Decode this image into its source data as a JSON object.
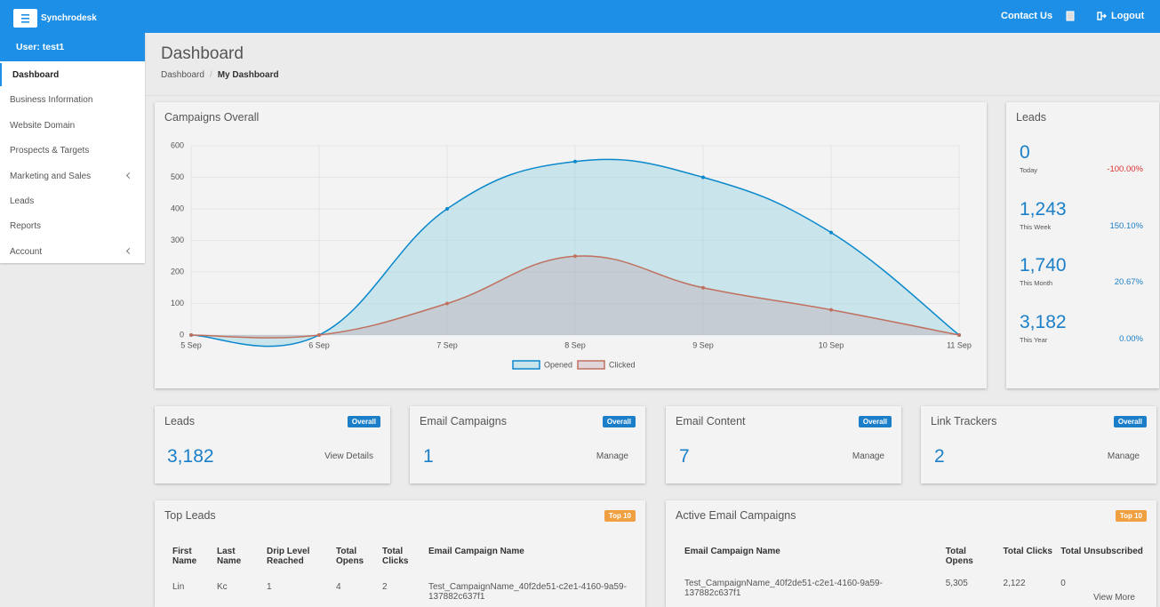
{
  "navbar": {
    "brand": "Synchrodesk",
    "contact": "Contact Us",
    "logout": "Logout"
  },
  "sidebar": {
    "user": "User: test1",
    "items": [
      "Dashboard",
      "Business Information",
      "Website Domain",
      "Prospects & Targets",
      "Marketing and Sales",
      "Leads",
      "Reports",
      "Account"
    ]
  },
  "header": {
    "title": "Dashboard",
    "breadcrumb": [
      "Dashboard",
      "My Dashboard"
    ]
  },
  "chart_data": {
    "type": "area",
    "title": "Campaigns Overall",
    "categories": [
      "5 Sep",
      "6 Sep",
      "7 Sep",
      "8 Sep",
      "9 Sep",
      "10 Sep",
      "11 Sep"
    ],
    "series": [
      {
        "name": "Opened",
        "color": "#0a88cc",
        "fill": "rgba(150,210,225,0.45)",
        "values": [
          0,
          0,
          400,
          550,
          500,
          325,
          0
        ]
      },
      {
        "name": "Clicked",
        "color": "#c0705f",
        "fill": "rgba(190,160,170,0.35)",
        "values": [
          0,
          0,
          100,
          250,
          150,
          80,
          0
        ]
      }
    ],
    "ylim": [
      0,
      600
    ],
    "yticks": [
      0,
      100,
      200,
      300,
      400,
      500,
      600
    ],
    "grid": true
  },
  "leads_panel": {
    "title": "Leads",
    "stats": [
      {
        "value": "0",
        "label": "Today",
        "change": "-100.00%"
      },
      {
        "value": "1,243",
        "label": "This Week",
        "change": "150.10%"
      },
      {
        "value": "1,740",
        "label": "This Month",
        "change": "20.67%"
      },
      {
        "value": "3,182",
        "label": "This Year",
        "change": "0.00%"
      }
    ]
  },
  "summary_cards": [
    {
      "title": "Leads",
      "badge": "Overall",
      "value": "3,182",
      "action": "View Details"
    },
    {
      "title": "Email Campaigns",
      "badge": "Overall",
      "value": "1",
      "action": "Manage"
    },
    {
      "title": "Email Content",
      "badge": "Overall",
      "value": "7",
      "action": "Manage"
    },
    {
      "title": "Link Trackers",
      "badge": "Overall",
      "value": "2",
      "action": "Manage"
    }
  ],
  "top_leads": {
    "title": "Top Leads",
    "badge": "Top 10",
    "columns": [
      "First Name",
      "Last Name",
      "Drip Level Reached",
      "Total Opens",
      "Total Clicks",
      "Email Campaign Name"
    ],
    "rows": [
      [
        "Lin",
        "Kc",
        "1",
        "4",
        "2",
        "Test_CampaignName_40f2de51-c2e1-4160-9a59-137882c637f1"
      ]
    ]
  },
  "active_campaigns": {
    "title": "Active Email Campaigns",
    "badge": "Top 10",
    "columns": [
      "Email Campaign Name",
      "Total Opens",
      "Total Clicks",
      "Total Unsubscribed"
    ],
    "rows": [
      [
        "Test_CampaignName_40f2de51-c2e1-4160-9a59-137882c637f1",
        "5,305",
        "2,122",
        "0"
      ]
    ],
    "more": "View More"
  }
}
